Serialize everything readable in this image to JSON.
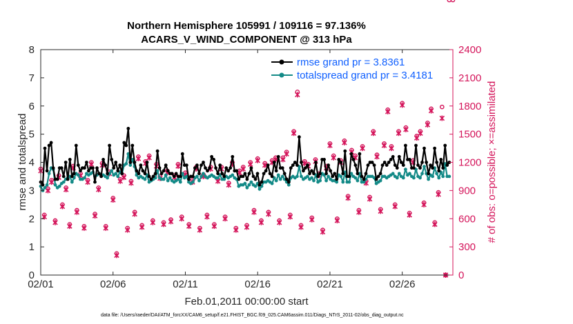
{
  "chart_data": {
    "type": "line",
    "title": "Northern Hemisphere 105991 / 109116 = 97.136%",
    "subtitle": "ACARS_V_WIND_COMPONENT @ 313 hPa",
    "xlabel": "Feb.01,2011 00:00:00 start",
    "ylabel": "rmse and totalspread",
    "ylabel_right": "# of obs: o=possible; ×=assimilated",
    "footnote": "data file: /Users/raeder/DAI/ATM_forcXX/CAM6_setup/f.e21.FHIST_BGC.f09_025.CAM6assim.011/Diags_NTrS_2011-02/obs_diag_output.nc",
    "xlim": [
      1,
      29.5
    ],
    "ylim": [
      0,
      8
    ],
    "ylim_right": [
      0,
      2400
    ],
    "x_ticks": [
      1,
      6,
      11,
      16,
      21,
      26
    ],
    "x_tick_labels": [
      "02/01",
      "02/06",
      "02/11",
      "02/16",
      "02/21",
      "02/26"
    ],
    "y_ticks": [
      0,
      1,
      2,
      3,
      4,
      5,
      6,
      7,
      8
    ],
    "y_tick_labels": [
      "0",
      "1",
      "2",
      "3",
      "4",
      "5",
      "6",
      "7",
      "8"
    ],
    "y_ticks_right": [
      0,
      300,
      600,
      900,
      1200,
      1500,
      1800,
      2100,
      2400
    ],
    "y_tick_labels_right": [
      "0",
      "300",
      "600",
      "900",
      "1200",
      "1500",
      "1800",
      "2100",
      "2400"
    ],
    "grid": false,
    "legend_position": "top-right",
    "colors": {
      "rmse": "#000000",
      "spread": "#138a87",
      "obs": "#d4145a",
      "legend_text": "#1060ff",
      "right_axis": "#d4145a"
    },
    "series": [
      {
        "name": "rmse grand pr = 3.8361",
        "axis": "left",
        "values": [
          3.3,
          3.2,
          4.5,
          3.7,
          4.6,
          4.7,
          3.8,
          3.4,
          3.4,
          3.8,
          3.8,
          3.5,
          4.0,
          3.4,
          4.1,
          3.5,
          3.6,
          4.6,
          3.9,
          3.7,
          3.8,
          3.8,
          4.0,
          3.7,
          3.8,
          3.8,
          3.3,
          3.8,
          3.6,
          3.5,
          4.1,
          3.9,
          3.6,
          4.6,
          4.1,
          3.8,
          4.0,
          3.7,
          3.9,
          3.6,
          4.7,
          4.6,
          5.2,
          4.0,
          4.6,
          4.0,
          3.7,
          3.6,
          3.9,
          3.7,
          3.6,
          4.0,
          3.5,
          3.4,
          3.5,
          3.6,
          4.4,
          3.8,
          3.6,
          3.7,
          3.9,
          3.7,
          3.6,
          3.6,
          3.5,
          3.6,
          3.5,
          3.5,
          4.3,
          3.9,
          3.9,
          3.4,
          3.5,
          3.5,
          3.8,
          3.9,
          3.6,
          3.9,
          4.0,
          3.8,
          3.7,
          3.8,
          4.2,
          4.1,
          3.8,
          3.6,
          3.9,
          3.6,
          3.5,
          3.8,
          3.7,
          3.8,
          4.2,
          3.7,
          3.7,
          3.4,
          3.5,
          3.5,
          3.6,
          3.4,
          3.6,
          3.8,
          3.5,
          3.4,
          3.6,
          3.2,
          3.3,
          3.6,
          3.7,
          3.9,
          3.6,
          3.5,
          4.0,
          3.7,
          4.2,
          3.8,
          3.8,
          3.6,
          3.4,
          3.3,
          3.8,
          3.9,
          4.0,
          3.9,
          4.9,
          4.0,
          3.7,
          3.8,
          3.9,
          3.6,
          3.7,
          3.6,
          4.0,
          3.5,
          3.6,
          4.1,
          4.1,
          3.6,
          3.9,
          3.7,
          3.5,
          3.6,
          3.4,
          4.1,
          4.0,
          3.6,
          4.4,
          3.5,
          3.5,
          4.3,
          4.1,
          3.9,
          3.6,
          4.3,
          3.5,
          3.4,
          3.6,
          3.9,
          4.0,
          4.0,
          3.9,
          3.4,
          3.5,
          3.6,
          3.9,
          4.0,
          3.9,
          4.0,
          4.1,
          4.2,
          3.9,
          3.8,
          4.2,
          4.0,
          3.9,
          4.6,
          4.1,
          4.1,
          3.8,
          3.8,
          4.6,
          3.9,
          3.8,
          4.0,
          4.5,
          4.0,
          3.6,
          3.9,
          3.8,
          4.5,
          4.0,
          3.7,
          4.1,
          3.8,
          4.6,
          3.9,
          4.0
        ]
      },
      {
        "name": "totalspread grand pr = 3.4181",
        "axis": "left",
        "values": [
          3.15,
          3.0,
          3.1,
          3.2,
          3.6,
          3.8,
          3.75,
          3.2,
          3.1,
          3.15,
          3.25,
          3.3,
          3.4,
          3.45,
          3.5,
          3.3,
          3.45,
          3.6,
          3.55,
          3.4,
          3.4,
          3.45,
          3.6,
          3.55,
          3.6,
          3.65,
          3.5,
          3.55,
          3.6,
          3.55,
          3.55,
          3.5,
          3.45,
          3.6,
          3.7,
          3.55,
          3.6,
          3.5,
          3.65,
          3.6,
          3.9,
          3.95,
          4.3,
          3.9,
          4.1,
          3.85,
          3.55,
          3.45,
          3.5,
          3.45,
          3.4,
          3.55,
          3.3,
          3.35,
          3.4,
          3.45,
          3.7,
          3.45,
          3.4,
          3.4,
          3.55,
          3.35,
          3.45,
          3.35,
          3.3,
          3.35,
          3.4,
          3.3,
          3.6,
          3.45,
          3.5,
          3.3,
          3.25,
          3.3,
          3.45,
          3.5,
          3.35,
          3.5,
          3.6,
          3.5,
          3.45,
          3.5,
          3.55,
          3.5,
          3.45,
          3.45,
          3.55,
          3.4,
          3.4,
          3.5,
          3.45,
          3.5,
          3.55,
          3.45,
          3.4,
          3.15,
          3.2,
          3.2,
          3.25,
          3.1,
          3.2,
          3.3,
          3.2,
          3.15,
          3.25,
          3.05,
          3.15,
          3.3,
          3.3,
          3.35,
          3.3,
          3.25,
          3.45,
          3.35,
          3.55,
          3.4,
          3.5,
          3.4,
          3.3,
          3.2,
          3.45,
          3.5,
          3.45,
          3.5,
          3.85,
          3.5,
          3.4,
          3.45,
          3.5,
          3.4,
          3.45,
          3.35,
          3.55,
          3.3,
          3.35,
          3.6,
          3.55,
          3.35,
          3.5,
          3.4,
          3.35,
          3.35,
          3.3,
          3.55,
          3.5,
          3.3,
          3.65,
          3.3,
          3.3,
          3.6,
          3.5,
          3.45,
          3.35,
          3.6,
          3.3,
          3.3,
          3.4,
          3.5,
          3.5,
          3.5,
          3.45,
          3.25,
          3.3,
          3.35,
          3.5,
          3.5,
          3.45,
          3.5,
          3.55,
          3.6,
          3.5,
          3.45,
          3.6,
          3.5,
          3.45,
          3.75,
          3.55,
          3.6,
          3.5,
          3.45,
          3.75,
          3.5,
          3.45,
          3.6,
          3.85,
          3.6,
          3.4,
          3.55,
          3.5,
          3.8,
          3.6,
          3.45,
          3.65,
          3.5,
          3.95,
          3.5,
          3.5
        ]
      }
    ],
    "obs_counts": {
      "axis": "right",
      "x": [
        1.0,
        1.25,
        1.5,
        1.75,
        2.0,
        2.25,
        2.5,
        2.75,
        3.0,
        3.25,
        3.5,
        3.75,
        4.0,
        4.25,
        4.5,
        4.75,
        5.0,
        5.25,
        5.5,
        5.75,
        6.0,
        6.25,
        6.5,
        6.75,
        7.0,
        7.25,
        7.5,
        7.75,
        8.0,
        8.25,
        8.5,
        8.75,
        9.0,
        9.25,
        9.5,
        9.75,
        10.0,
        10.25,
        10.5,
        10.75,
        11.0,
        11.25,
        11.5,
        11.75,
        12.0,
        12.25,
        12.5,
        12.75,
        13.0,
        13.25,
        13.5,
        13.75,
        14.0,
        14.25,
        14.5,
        14.75,
        15.0,
        15.25,
        15.5,
        15.75,
        16.0,
        16.25,
        16.5,
        16.75,
        17.0,
        17.25,
        17.5,
        17.75,
        18.0,
        18.25,
        18.5,
        18.75,
        19.0,
        19.25,
        19.5,
        19.75,
        20.0,
        20.25,
        20.5,
        20.75,
        21.0,
        21.25,
        21.5,
        21.75,
        22.0,
        22.25,
        22.5,
        22.75,
        23.0,
        23.25,
        23.5,
        23.75,
        24.0,
        24.25,
        24.5,
        24.75,
        25.0,
        25.25,
        25.5,
        25.75,
        26.0,
        26.25,
        26.5,
        26.75,
        27.0,
        27.25,
        27.5,
        27.75,
        28.0,
        28.25,
        28.5,
        28.75,
        29.0,
        29.25,
        29.5
      ],
      "possible": [
        1130,
        640,
        920,
        1010,
        580,
        1060,
        750,
        930,
        540,
        1160,
        690,
        1080,
        520,
        1010,
        1200,
        650,
        930,
        1190,
        520,
        1100,
        820,
        230,
        1020,
        1060,
        500,
        1000,
        670,
        1260,
        530,
        1210,
        1270,
        580,
        1180,
        1050,
        560,
        1110,
        590,
        1060,
        1180,
        620,
        1090,
        540,
        1010,
        1150,
        500,
        1070,
        640,
        1150,
        540,
        1020,
        1150,
        620,
        980,
        1200,
        500,
        1110,
        1150,
        530,
        1200,
        690,
        1240,
        580,
        1190,
        670,
        1220,
        1250,
        580,
        1250,
        1310,
        640,
        1530,
        1950,
        530,
        1210,
        1180,
        610,
        1230,
        1080,
        480,
        1160,
        1400,
        1270,
        600,
        1220,
        1430,
        840,
        1330,
        1270,
        690,
        1370,
        1000,
        830,
        1530,
        1280,
        700,
        1400,
        1760,
        1370,
        750,
        1530,
        1830,
        1570,
        660,
        1220,
        1480,
        1530,
        770,
        1620,
        1770,
        560,
        880,
        1790,
        0
      ],
      "assimilated": [
        1110,
        620,
        900,
        990,
        560,
        1040,
        730,
        910,
        520,
        1140,
        670,
        1060,
        500,
        990,
        1180,
        630,
        910,
        1170,
        500,
        1080,
        800,
        210,
        1000,
        1040,
        480,
        980,
        650,
        1240,
        510,
        1190,
        1250,
        560,
        1160,
        1030,
        540,
        1090,
        570,
        1040,
        1160,
        600,
        1070,
        520,
        990,
        1130,
        480,
        1050,
        620,
        1130,
        520,
        1000,
        1130,
        600,
        960,
        1180,
        480,
        1090,
        1130,
        510,
        1180,
        670,
        1220,
        560,
        1170,
        650,
        1200,
        1230,
        560,
        1230,
        1290,
        620,
        1510,
        1920,
        510,
        1190,
        1160,
        590,
        1210,
        1060,
        460,
        1140,
        1380,
        1250,
        580,
        1200,
        1410,
        820,
        1310,
        1250,
        670,
        1350,
        980,
        810,
        1510,
        1260,
        680,
        1380,
        1740,
        1350,
        730,
        1510,
        1810,
        1550,
        640,
        1200,
        1460,
        1510,
        750,
        1600,
        1750,
        540,
        860,
        1670,
        0
      ]
    },
    "legend": [
      "rmse grand pr = 3.8361",
      "totalspread grand pr = 3.4181"
    ]
  }
}
